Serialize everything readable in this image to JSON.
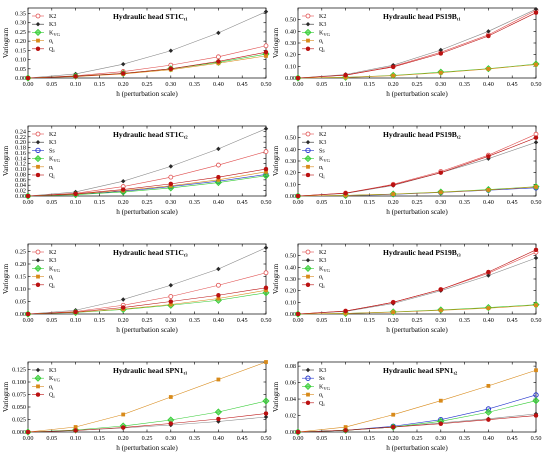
{
  "colors": {
    "K2": "#e05050",
    "K3": "#2a2a2a",
    "Ss": "#2233cc",
    "KVG": "#33cc33",
    "ai": "#d88a1a",
    "Qi": "#bb1111",
    "axis": "#000000",
    "grid_curve_K3": "#888888"
  },
  "chart_data": [
    {
      "type": "line",
      "title_main": "Hydraulic head ST1C",
      "title_sub": "t1",
      "xlabel": "h (perturbation scale)",
      "ylabel": "Variogram",
      "xlim": [
        0,
        0.5
      ],
      "ylim": [
        0,
        0.38
      ],
      "x_ticks": [
        "0.00",
        "0.05",
        "0.10",
        "0.15",
        "0.20",
        "0.25",
        "0.30",
        "0.35",
        "0.40",
        "0.45",
        "0.50"
      ],
      "y_ticks": [
        "0.00",
        "0.05",
        "0.10",
        "0.15",
        "0.20",
        "0.25",
        "0.30",
        "0.35"
      ],
      "x": [
        0,
        0.1,
        0.2,
        0.3,
        0.4,
        0.5
      ],
      "series": [
        {
          "name": "K2",
          "key": "K2",
          "marker": "circle-open",
          "values": [
            0,
            0.012,
            0.035,
            0.07,
            0.115,
            0.175
          ]
        },
        {
          "name": "K3",
          "key": "K3",
          "marker": "diamond",
          "values": [
            0,
            0.022,
            0.075,
            0.148,
            0.245,
            0.36
          ]
        },
        {
          "name": "KVG",
          "key": "KVG",
          "marker": "diamond-big",
          "values": [
            0,
            0.01,
            0.025,
            0.05,
            0.085,
            0.13
          ]
        },
        {
          "name": "αi",
          "key": "ai",
          "marker": "square",
          "values": [
            0,
            0.008,
            0.022,
            0.045,
            0.08,
            0.12
          ]
        },
        {
          "name": "Qi",
          "key": "Qi",
          "marker": "circle",
          "values": [
            0,
            0.009,
            0.025,
            0.05,
            0.09,
            0.14
          ]
        }
      ]
    },
    {
      "type": "line",
      "title_main": "Hydraulic head PS19B",
      "title_sub": "t1",
      "xlabel": "h (perturbation scale)",
      "ylabel": "Variogram",
      "xlim": [
        0,
        0.5
      ],
      "ylim": [
        0,
        0.6
      ],
      "x_ticks": [
        "0.00",
        "0.05",
        "0.10",
        "0.15",
        "0.20",
        "0.25",
        "0.30",
        "0.35",
        "0.40",
        "0.45",
        "0.50"
      ],
      "y_ticks": [
        "0.00",
        "0.10",
        "0.20",
        "0.30",
        "0.40",
        "0.50"
      ],
      "x": [
        0,
        0.1,
        0.2,
        0.3,
        0.4,
        0.5
      ],
      "series": [
        {
          "name": "K2",
          "key": "K2",
          "marker": "circle-open",
          "values": [
            0,
            0.025,
            0.1,
            0.22,
            0.37,
            0.58
          ]
        },
        {
          "name": "K3",
          "key": "K3",
          "marker": "diamond",
          "values": [
            0,
            0.03,
            0.11,
            0.24,
            0.4,
            0.59
          ]
        },
        {
          "name": "KVG",
          "key": "KVG",
          "marker": "diamond-big",
          "values": [
            0,
            0.006,
            0.022,
            0.05,
            0.08,
            0.12
          ]
        },
        {
          "name": "αi",
          "key": "ai",
          "marker": "square",
          "values": [
            0,
            0.005,
            0.02,
            0.045,
            0.078,
            0.115
          ]
        },
        {
          "name": "Qi",
          "key": "Qi",
          "marker": "circle",
          "values": [
            0,
            0.024,
            0.095,
            0.21,
            0.36,
            0.56
          ]
        }
      ]
    },
    {
      "type": "line",
      "title_main": "Hydraulic head ST1C",
      "title_sub": "t2",
      "xlabel": "h (perturbation scale)",
      "ylabel": "Variogram",
      "xlim": [
        0,
        0.5
      ],
      "ylim": [
        0,
        0.26
      ],
      "x_ticks": [
        "0.00",
        "0.05",
        "0.10",
        "0.15",
        "0.20",
        "0.25",
        "0.30",
        "0.35",
        "0.40",
        "0.45",
        "0.50"
      ],
      "y_ticks": [
        "0.00",
        "0.02",
        "0.04",
        "0.06",
        "0.08",
        "0.10",
        "0.12",
        "0.14",
        "0.16",
        "0.18",
        "0.20",
        "0.22",
        "0.24"
      ],
      "x": [
        0,
        0.1,
        0.2,
        0.3,
        0.4,
        0.5
      ],
      "series": [
        {
          "name": "K2",
          "key": "K2",
          "marker": "circle-open",
          "values": [
            0,
            0.01,
            0.035,
            0.07,
            0.115,
            0.165
          ]
        },
        {
          "name": "K3",
          "key": "K3",
          "marker": "diamond",
          "values": [
            0,
            0.015,
            0.055,
            0.11,
            0.175,
            0.25
          ]
        },
        {
          "name": "Ss",
          "key": "Ss",
          "marker": "circle-blue",
          "values": [
            0,
            0.006,
            0.018,
            0.035,
            0.055,
            0.08
          ]
        },
        {
          "name": "KVG",
          "key": "KVG",
          "marker": "diamond-big",
          "values": [
            0,
            0.005,
            0.015,
            0.03,
            0.05,
            0.075
          ]
        },
        {
          "name": "αi",
          "key": "ai",
          "marker": "square",
          "values": [
            0,
            0.007,
            0.02,
            0.038,
            0.06,
            0.09
          ]
        },
        {
          "name": "Qi",
          "key": "Qi",
          "marker": "circle",
          "values": [
            0,
            0.008,
            0.024,
            0.045,
            0.07,
            0.1
          ]
        }
      ]
    },
    {
      "type": "line",
      "title_main": "Hydraulic head PS19B",
      "title_sub": "t2",
      "xlabel": "h (perturbation scale)",
      "ylabel": "Variogram",
      "xlim": [
        0,
        0.5
      ],
      "ylim": [
        0,
        0.6
      ],
      "x_ticks": [
        "0.00",
        "0.05",
        "0.10",
        "0.15",
        "0.20",
        "0.25",
        "0.30",
        "0.35",
        "0.40",
        "0.45",
        "0.50"
      ],
      "y_ticks": [
        "0.00",
        "0.10",
        "0.20",
        "0.30",
        "0.40",
        "0.50"
      ],
      "x": [
        0,
        0.1,
        0.2,
        0.3,
        0.4,
        0.5
      ],
      "series": [
        {
          "name": "K2",
          "key": "K2",
          "marker": "circle-open",
          "values": [
            0,
            0.025,
            0.1,
            0.21,
            0.35,
            0.53
          ]
        },
        {
          "name": "K3",
          "key": "K3",
          "marker": "diamond",
          "values": [
            0,
            0.022,
            0.09,
            0.2,
            0.32,
            0.46
          ]
        },
        {
          "name": "Ss",
          "key": "Ss",
          "marker": "circle-blue",
          "values": [
            0,
            0.004,
            0.014,
            0.03,
            0.05,
            0.07
          ]
        },
        {
          "name": "KVG",
          "key": "KVG",
          "marker": "diamond-big",
          "values": [
            0,
            0.005,
            0.017,
            0.034,
            0.055,
            0.08
          ]
        },
        {
          "name": "αi",
          "key": "ai",
          "marker": "square",
          "values": [
            0,
            0.005,
            0.016,
            0.032,
            0.052,
            0.078
          ]
        },
        {
          "name": "Qi",
          "key": "Qi",
          "marker": "circle",
          "values": [
            0,
            0.024,
            0.095,
            0.2,
            0.34,
            0.5
          ]
        }
      ]
    },
    {
      "type": "line",
      "title_main": "Hydraulic head ST1C",
      "title_sub": "t3",
      "xlabel": "h (perturbation scale)",
      "ylabel": "Variogram",
      "xlim": [
        0,
        0.5
      ],
      "ylim": [
        0,
        0.28
      ],
      "x_ticks": [
        "0.00",
        "0.05",
        "0.10",
        "0.15",
        "0.20",
        "0.25",
        "0.30",
        "0.35",
        "0.40",
        "0.45",
        "0.50"
      ],
      "y_ticks": [
        "0.00",
        "0.05",
        "0.10",
        "0.15",
        "0.20",
        "0.25"
      ],
      "x": [
        0,
        0.1,
        0.2,
        0.3,
        0.4,
        0.5
      ],
      "series": [
        {
          "name": "K2",
          "key": "K2",
          "marker": "circle-open",
          "values": [
            0,
            0.01,
            0.035,
            0.07,
            0.115,
            0.165
          ]
        },
        {
          "name": "K3",
          "key": "K3",
          "marker": "diamond",
          "values": [
            0,
            0.015,
            0.058,
            0.115,
            0.18,
            0.265
          ]
        },
        {
          "name": "KVG",
          "key": "KVG",
          "marker": "diamond-big",
          "values": [
            0,
            0.006,
            0.018,
            0.035,
            0.055,
            0.085
          ]
        },
        {
          "name": "αi",
          "key": "ai",
          "marker": "square",
          "values": [
            0,
            0.007,
            0.02,
            0.038,
            0.062,
            0.095
          ]
        },
        {
          "name": "Qi",
          "key": "Qi",
          "marker": "circle",
          "values": [
            0,
            0.008,
            0.026,
            0.05,
            0.075,
            0.105
          ]
        }
      ]
    },
    {
      "type": "line",
      "title_main": "Hydraulic head PS19B",
      "title_sub": "t3",
      "xlabel": "h (perturbation scale)",
      "ylabel": "Variogram",
      "xlim": [
        0,
        0.5
      ],
      "ylim": [
        0,
        0.6
      ],
      "x_ticks": [
        "0.00",
        "0.05",
        "0.10",
        "0.15",
        "0.20",
        "0.25",
        "0.30",
        "0.35",
        "0.40",
        "0.45",
        "0.50"
      ],
      "y_ticks": [
        "0.00",
        "0.10",
        "0.20",
        "0.30",
        "0.40",
        "0.50"
      ],
      "x": [
        0,
        0.1,
        0.2,
        0.3,
        0.4,
        0.5
      ],
      "series": [
        {
          "name": "K2",
          "key": "K2",
          "marker": "circle-open",
          "values": [
            0,
            0.025,
            0.1,
            0.21,
            0.35,
            0.53
          ]
        },
        {
          "name": "K3",
          "key": "K3",
          "marker": "diamond",
          "values": [
            0,
            0.022,
            0.09,
            0.2,
            0.33,
            0.48
          ]
        },
        {
          "name": "KVG",
          "key": "KVG",
          "marker": "diamond-big",
          "values": [
            0,
            0.005,
            0.018,
            0.035,
            0.055,
            0.08
          ]
        },
        {
          "name": "αi",
          "key": "ai",
          "marker": "square",
          "values": [
            0,
            0.005,
            0.016,
            0.032,
            0.05,
            0.075
          ]
        },
        {
          "name": "Qi",
          "key": "Qi",
          "marker": "circle",
          "values": [
            0,
            0.025,
            0.1,
            0.21,
            0.36,
            0.55
          ]
        }
      ]
    },
    {
      "type": "line",
      "title_main": "Hydraulic head SPN1",
      "title_sub": "t1",
      "xlabel": "h (perturbation scale)",
      "ylabel": "Variogram",
      "xlim": [
        0,
        0.5
      ],
      "ylim": [
        0,
        0.14
      ],
      "x_ticks": [
        "0.00",
        "0.05",
        "0.10",
        "0.15",
        "0.20",
        "0.25",
        "0.30",
        "0.35",
        "0.40",
        "0.45",
        "0.50"
      ],
      "y_ticks": [
        "0.000",
        "0.025",
        "0.050",
        "0.075",
        "0.100",
        "0.125"
      ],
      "x": [
        0,
        0.1,
        0.2,
        0.3,
        0.4,
        0.5
      ],
      "series": [
        {
          "name": "K3",
          "key": "K3",
          "marker": "diamond",
          "values": [
            0,
            0.003,
            0.008,
            0.014,
            0.021,
            0.03
          ]
        },
        {
          "name": "KVG",
          "key": "KVG",
          "marker": "diamond-big",
          "values": [
            0,
            0.004,
            0.012,
            0.024,
            0.04,
            0.062
          ]
        },
        {
          "name": "αi",
          "key": "ai",
          "marker": "square",
          "values": [
            0,
            0.01,
            0.035,
            0.07,
            0.105,
            0.14
          ]
        },
        {
          "name": "Qi",
          "key": "Qi",
          "marker": "circle",
          "values": [
            0,
            0.003,
            0.009,
            0.017,
            0.026,
            0.037
          ]
        }
      ]
    },
    {
      "type": "line",
      "title_main": "Hydraulic head SPN1",
      "title_sub": "t2",
      "xlabel": "h (perturbation scale)",
      "ylabel": "Variogram",
      "xlim": [
        0,
        0.5
      ],
      "ylim": [
        0,
        0.085
      ],
      "x_ticks": [
        "0.00",
        "0.05",
        "0.10",
        "0.15",
        "0.20",
        "0.25",
        "0.30",
        "0.35",
        "0.40",
        "0.45",
        "0.50"
      ],
      "y_ticks": [
        "0.00",
        "0.02",
        "0.04",
        "0.06",
        "0.08"
      ],
      "x": [
        0,
        0.1,
        0.2,
        0.3,
        0.4,
        0.5
      ],
      "series": [
        {
          "name": "K3",
          "key": "K3",
          "marker": "diamond",
          "values": [
            0,
            0.002,
            0.006,
            0.011,
            0.016,
            0.022
          ]
        },
        {
          "name": "Ss",
          "key": "Ss",
          "marker": "circle-blue",
          "values": [
            0,
            0.002,
            0.007,
            0.015,
            0.028,
            0.045
          ]
        },
        {
          "name": "KVG",
          "key": "KVG",
          "marker": "diamond-big",
          "values": [
            0,
            0.002,
            0.006,
            0.013,
            0.024,
            0.038
          ]
        },
        {
          "name": "αi",
          "key": "ai",
          "marker": "square",
          "values": [
            0,
            0.006,
            0.021,
            0.038,
            0.056,
            0.075
          ]
        },
        {
          "name": "Qi",
          "key": "Qi",
          "marker": "circle",
          "values": [
            0,
            0.002,
            0.006,
            0.01,
            0.015,
            0.02
          ]
        }
      ]
    }
  ]
}
